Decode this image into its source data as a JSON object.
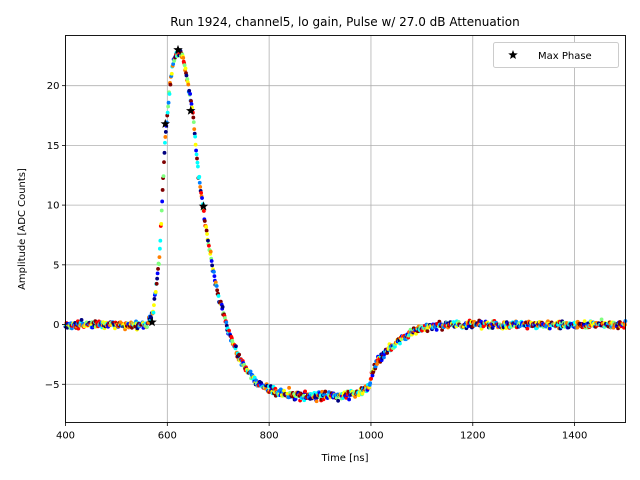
{
  "chart_data": {
    "type": "scatter",
    "title": "Run 1924, channel5, lo gain, Pulse w/ 27.0 dB Attenuation",
    "xlabel": "Time [ns]",
    "ylabel": "Amplitude [ADC Counts]",
    "xlim": [
      400,
      1500
    ],
    "ylim": [
      -8.2,
      24.2
    ],
    "xticks": [
      400,
      600,
      800,
      1000,
      1200,
      1400
    ],
    "yticks": [
      -5,
      0,
      5,
      10,
      15,
      20
    ],
    "grid": true,
    "legend": {
      "position": "top-right",
      "entries": [
        "Max Phase"
      ]
    },
    "colormap": [
      "#00007f",
      "#0000ff",
      "#007fff",
      "#00ffff",
      "#7fff7f",
      "#ffff00",
      "#ff7f00",
      "#ff0000",
      "#7f0000"
    ],
    "pulse_shape": {
      "x": [
        400,
        560,
        572,
        585,
        595,
        605,
        612,
        620,
        630,
        640,
        650,
        660,
        670,
        680,
        690,
        700,
        720,
        740,
        760,
        780,
        800,
        830,
        860,
        900,
        940,
        980,
        995,
        1000,
        1010,
        1030,
        1050,
        1080,
        1110,
        1150,
        1200,
        1300,
        1500
      ],
      "y": [
        0,
        0,
        1,
        6,
        15,
        20,
        22,
        22.8,
        22.5,
        20.2,
        17.8,
        13,
        9.8,
        7,
        4.5,
        2.5,
        -0.5,
        -2.7,
        -4.1,
        -5,
        -5.4,
        -5.8,
        -5.9,
        -6,
        -6,
        -5.7,
        -5.4,
        -4.5,
        -3.2,
        -2.3,
        -1.5,
        -0.6,
        -0.2,
        0,
        0,
        0,
        0
      ]
    },
    "series": [
      {
        "name": "Max Phase",
        "marker": "star",
        "color": "#000000",
        "x": [
          570,
          596,
          621,
          646,
          671
        ],
        "y": [
          0.2,
          16.8,
          23.0,
          17.9,
          9.9
        ]
      }
    ]
  }
}
